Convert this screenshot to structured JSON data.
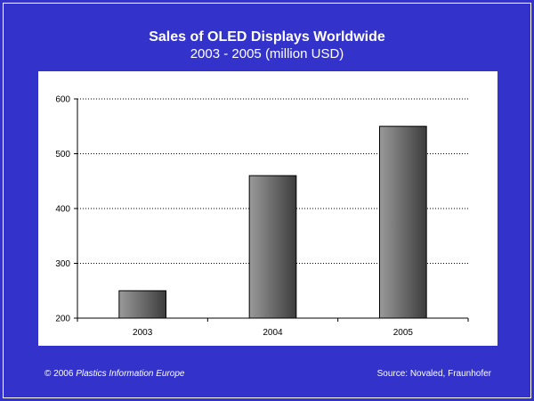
{
  "slide": {
    "background": "#3333cc",
    "footer_copyright": "© 2006",
    "footer_publisher": "Plastics Information Europe",
    "footer_source": "Source: Novaled, Fraunhofer"
  },
  "chart_data": {
    "type": "bar",
    "title": "Sales of OLED Displays Worldwide",
    "subtitle": "2003 - 2005 (million USD)",
    "categories": [
      "2003",
      "2004",
      "2005"
    ],
    "values": [
      250,
      460,
      550
    ],
    "ylim": [
      200,
      600
    ],
    "yticks": [
      200,
      300,
      400,
      500,
      600
    ],
    "xlabel": "",
    "ylabel": "",
    "grid": "horizontal dotted",
    "legend": "none",
    "bar_color": "#707070"
  }
}
